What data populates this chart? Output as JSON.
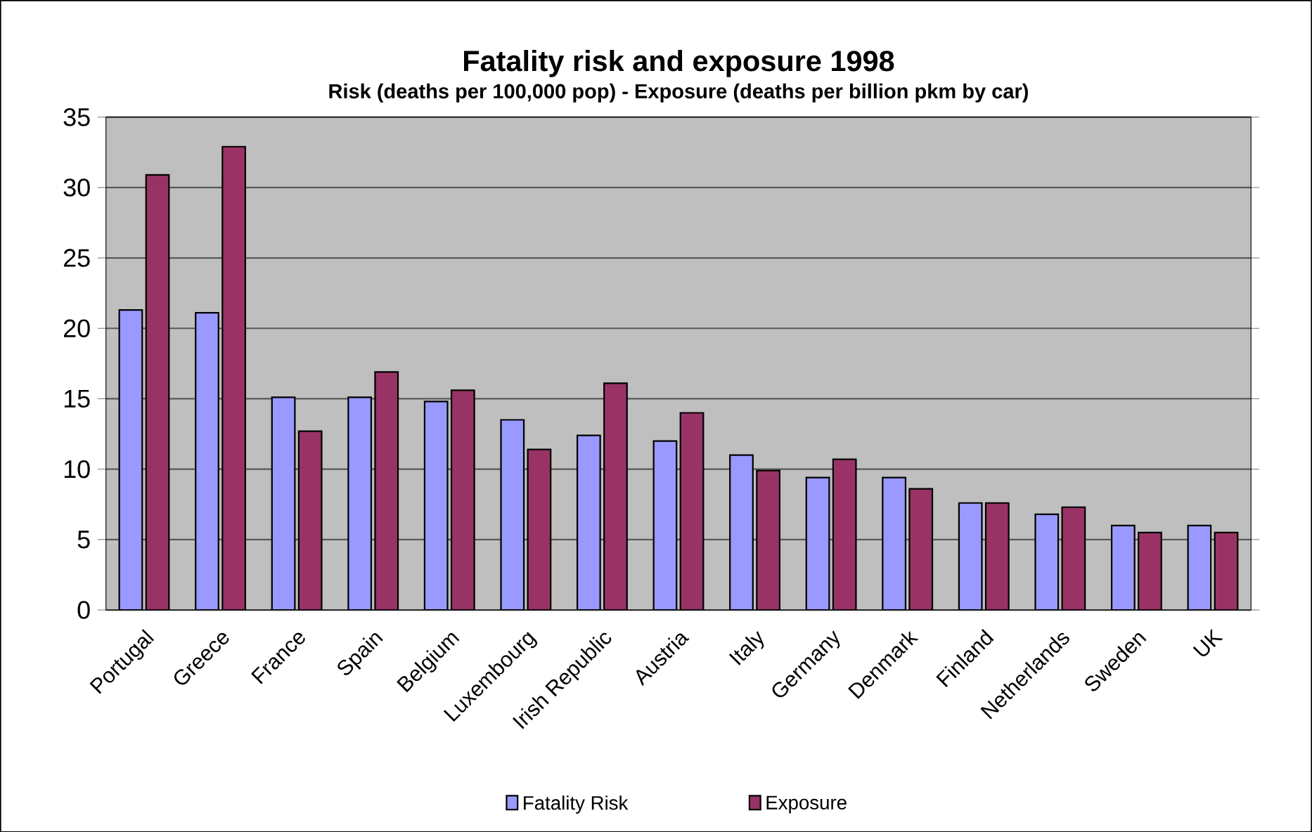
{
  "chart_data": {
    "type": "bar",
    "title": "Fatality risk and exposure 1998",
    "subtitle": "Risk (deaths per 100,000 pop) - Exposure (deaths per billion pkm by car)",
    "categories": [
      "Portugal",
      "Greece",
      "France",
      "Spain",
      "Belgium",
      "Luxembourg",
      "Irish Republic",
      "Austria",
      "Italy",
      "Germany",
      "Denmark",
      "Finland",
      "Netherlands",
      "Sweden",
      "UK"
    ],
    "series": [
      {
        "name": "Fatality Risk",
        "color": "#9999ff",
        "values": [
          21.3,
          21.1,
          15.1,
          15.1,
          14.8,
          13.5,
          12.4,
          12.0,
          11.0,
          9.4,
          9.4,
          7.6,
          6.8,
          6.0,
          6.0
        ]
      },
      {
        "name": "Exposure",
        "color": "#993366",
        "values": [
          30.9,
          32.9,
          12.7,
          16.9,
          15.6,
          11.4,
          16.1,
          14.0,
          9.9,
          10.7,
          8.6,
          7.6,
          7.3,
          5.5,
          5.5
        ]
      }
    ],
    "ylim": [
      0,
      35
    ],
    "yticks": [
      0,
      5,
      10,
      15,
      20,
      25,
      30,
      35
    ],
    "grid": "y",
    "legend": "bottom"
  }
}
